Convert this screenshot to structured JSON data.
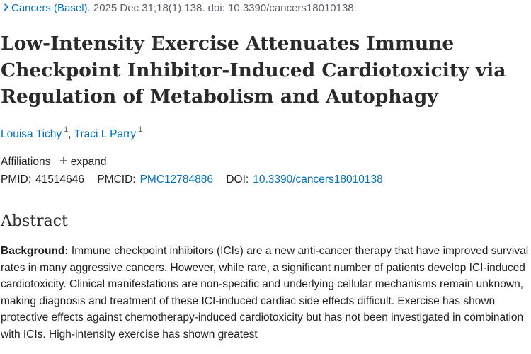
{
  "citation": {
    "journal": "Cancers (Basel).",
    "details": " 2025 Dec 31;18(1):138. doi: 10.3390/cancers18010138."
  },
  "article": {
    "title": "Low-Intensity Exercise Attenuates Immune Checkpoint Inhibitor-Induced Cardiotoxicity via Regulation of Metabolism and Autophagy",
    "authors": [
      {
        "name": "Louisa Tichy",
        "affiliation": "1"
      },
      {
        "name": "Traci L Parry",
        "affiliation": "1"
      }
    ],
    "author_separator": ",",
    "affiliations_label": "Affiliations",
    "expand_label": "expand",
    "pmid_label": "PMID:",
    "pmid": "41514646",
    "pmcid_label": "PMCID:",
    "pmcid": "PMC12784886",
    "doi_label": "DOI:",
    "doi": "10.3390/cancers18010138"
  },
  "abstract": {
    "heading": "Abstract",
    "background_label": "Background:",
    "text": " Immune checkpoint inhibitors (ICIs) are a new anti-cancer therapy that have improved survival rates in many aggressive cancers. However, while rare, a significant number of patients develop ICI-induced cardiotoxicity. Clinical manifestations are non-specific and underlying cellular mechanisms remain unknown, making diagnosis and treatment of these ICI-induced cardiac side effects difficult. Exercise has shown protective effects against chemotherapy-induced cardiotoxicity but has not been investigated in combination with ICIs. High-intensity exercise has shown greatest"
  }
}
